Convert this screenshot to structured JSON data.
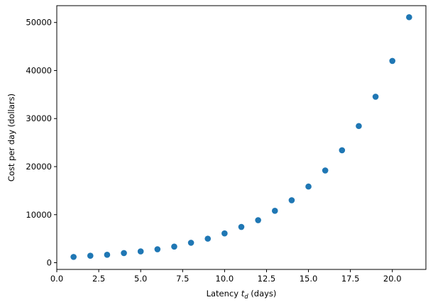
{
  "chart_data": {
    "type": "scatter",
    "xlabel": {
      "prefix": "Latency ",
      "symbol": "t",
      "subscript": "d",
      "suffix": " (days)"
    },
    "ylabel": "Cost per day (dollars)",
    "xlim": [
      0,
      22
    ],
    "ylim": [
      -1400,
      53500
    ],
    "xticks": [
      0,
      2.5,
      5,
      7.5,
      10,
      12.5,
      15,
      17.5,
      20
    ],
    "xtick_labels": [
      "0.0",
      "2.5",
      "5.0",
      "7.5",
      "10.0",
      "12.5",
      "15.0",
      "17.5",
      "20.0"
    ],
    "yticks": [
      0,
      10000,
      20000,
      30000,
      40000,
      50000
    ],
    "ytick_labels": [
      "0",
      "10000",
      "20000",
      "30000",
      "40000",
      "50000"
    ],
    "grid": false,
    "marker_color": "#1f77b4",
    "x": [
      1,
      2,
      3,
      4,
      5,
      6,
      7,
      8,
      9,
      10,
      11,
      12,
      13,
      14,
      15,
      16,
      17,
      18,
      19,
      20,
      21
    ],
    "y": [
      1200,
      1450,
      1650,
      2000,
      2350,
      2800,
      3350,
      4150,
      5000,
      6100,
      7450,
      8850,
      10800,
      13000,
      15850,
      19200,
      23400,
      28450,
      34550,
      42000,
      51100
    ]
  }
}
